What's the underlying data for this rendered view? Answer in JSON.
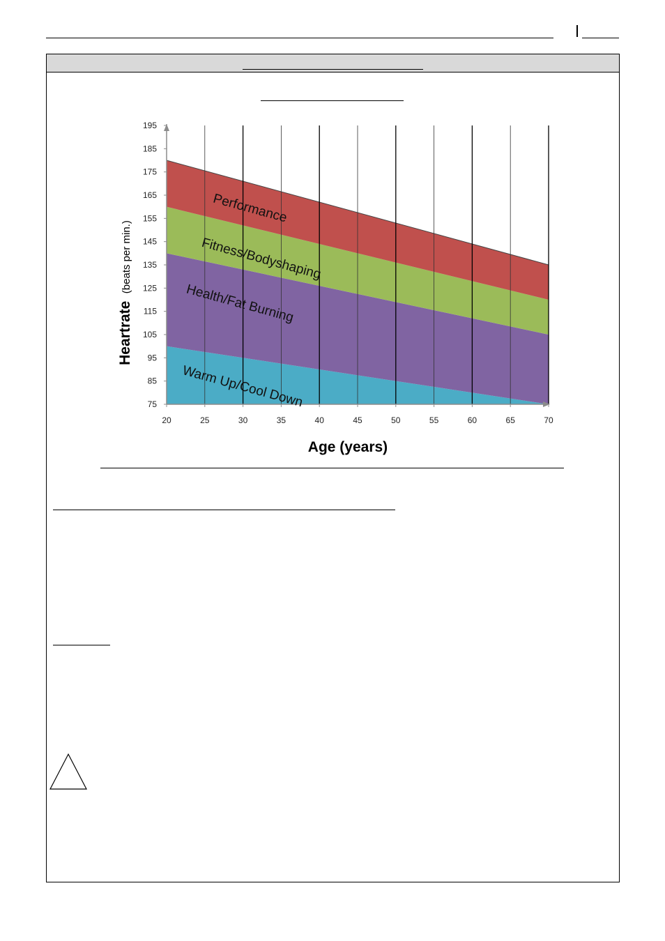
{
  "page": {
    "colors": {
      "frame": "#000000",
      "header_band": "#d9d9d9"
    },
    "icons": [
      "warning-triangle-icon"
    ]
  },
  "chart_data": {
    "type": "area",
    "title": "",
    "xlabel": "Age (years)",
    "ylabel_main": "Heartrate",
    "ylabel_sub": "(beats per min.)",
    "xlim": [
      20,
      70
    ],
    "ylim": [
      75,
      195
    ],
    "x_ticks": [
      20,
      25,
      30,
      35,
      40,
      45,
      50,
      55,
      60,
      65,
      70
    ],
    "y_ticks": [
      75,
      85,
      95,
      105,
      115,
      125,
      135,
      145,
      155,
      165,
      175,
      185,
      195
    ],
    "vertical_gridlines": true,
    "horizontal_gridlines": false,
    "zones": [
      {
        "name": "Warm Up/Cool Down",
        "color": "#4bacc6",
        "lower": [
          75,
          75
        ],
        "upper": [
          100,
          75
        ]
      },
      {
        "name": "Health/Fat Burning",
        "color": "#8064a2",
        "lower": [
          100,
          75
        ],
        "upper": [
          140,
          105
        ]
      },
      {
        "name": "Fitness/Bodyshaping",
        "color": "#9bbb59",
        "lower": [
          140,
          105
        ],
        "upper": [
          160,
          120
        ]
      },
      {
        "name": "Performance",
        "color": "#c0504d",
        "lower": [
          160,
          120
        ],
        "upper": [
          180,
          135
        ]
      }
    ],
    "zone_x": [
      20,
      70
    ]
  }
}
